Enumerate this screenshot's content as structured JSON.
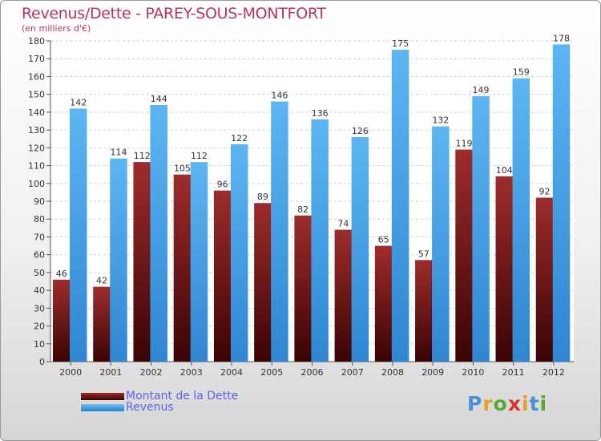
{
  "chart_data": {
    "type": "bar",
    "title": "Revenus/Dette - PAREY-SOUS-MONTFORT",
    "subtitle": "(en milliers d'€)",
    "categories": [
      "2000",
      "2001",
      "2002",
      "2003",
      "2004",
      "2005",
      "2006",
      "2007",
      "2008",
      "2009",
      "2010",
      "2011",
      "2012"
    ],
    "series": [
      {
        "name": "Montant de la Dette",
        "color": "#8b1a1a",
        "values": [
          46,
          42,
          112,
          105,
          96,
          89,
          82,
          74,
          65,
          57,
          119,
          104,
          92
        ]
      },
      {
        "name": "Revenus",
        "color": "#3f9ee8",
        "values": [
          142,
          114,
          144,
          112,
          122,
          146,
          136,
          126,
          175,
          132,
          149,
          159,
          178
        ]
      }
    ],
    "ylim": [
      0,
      180
    ],
    "yticks": [
      0,
      10,
      20,
      30,
      40,
      50,
      60,
      70,
      80,
      90,
      100,
      110,
      120,
      130,
      140,
      150,
      160,
      170,
      180
    ],
    "grid": true,
    "legend_position": "bottom-left"
  },
  "logo": {
    "text": "Proxiti",
    "colors": [
      "#4a90d9",
      "#e8a020",
      "#5aa832",
      "#d9342b",
      "#e8a020",
      "#4a90d9",
      "#5aa832"
    ]
  }
}
